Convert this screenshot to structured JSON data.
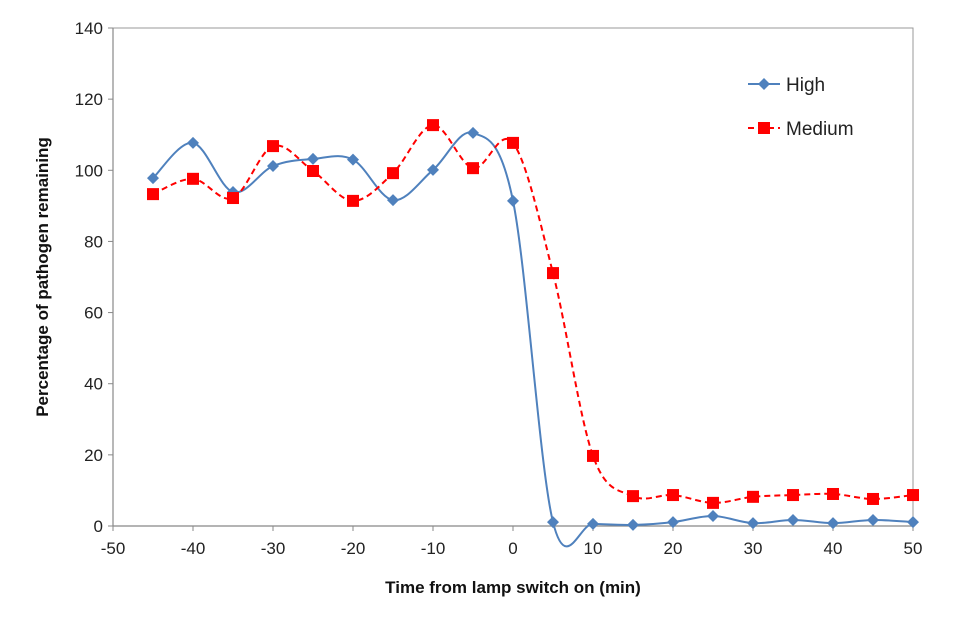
{
  "chart_data": {
    "type": "line",
    "title": "",
    "xlabel": "Time from lamp switch on (min)",
    "ylabel": "Percentage of pathogen remaining",
    "xlim": [
      -50,
      50
    ],
    "ylim": [
      0,
      140
    ],
    "xticks": [
      -50,
      -40,
      -30,
      -20,
      -10,
      0,
      10,
      20,
      30,
      40,
      50
    ],
    "yticks": [
      0,
      20,
      40,
      60,
      80,
      100,
      120,
      140
    ],
    "grid": false,
    "legend_position": "top-right",
    "x": [
      -45,
      -40,
      -35,
      -30,
      -25,
      -20,
      -15,
      -10,
      -5,
      0,
      5,
      10,
      15,
      20,
      25,
      30,
      35,
      40,
      45,
      50
    ],
    "series": [
      {
        "name": "High",
        "color": "#4f81bd",
        "marker": "diamond",
        "line": "solid-smooth",
        "values": [
          97.8,
          107.7,
          93.9,
          101.2,
          103.2,
          103.0,
          91.6,
          100.1,
          110.5,
          91.4,
          1.1,
          0.6,
          0.3,
          1.1,
          2.8,
          0.8,
          1.7,
          0.8,
          1.7,
          1.1
        ]
      },
      {
        "name": "Medium",
        "color": "#ff0000",
        "marker": "square",
        "line": "dashed-smooth",
        "values": [
          93.3,
          97.6,
          92.2,
          106.8,
          99.8,
          91.4,
          99.2,
          112.7,
          100.6,
          107.7,
          71.1,
          19.7,
          8.4,
          8.7,
          6.5,
          8.2,
          8.7,
          9.0,
          7.6,
          8.7
        ]
      }
    ]
  }
}
